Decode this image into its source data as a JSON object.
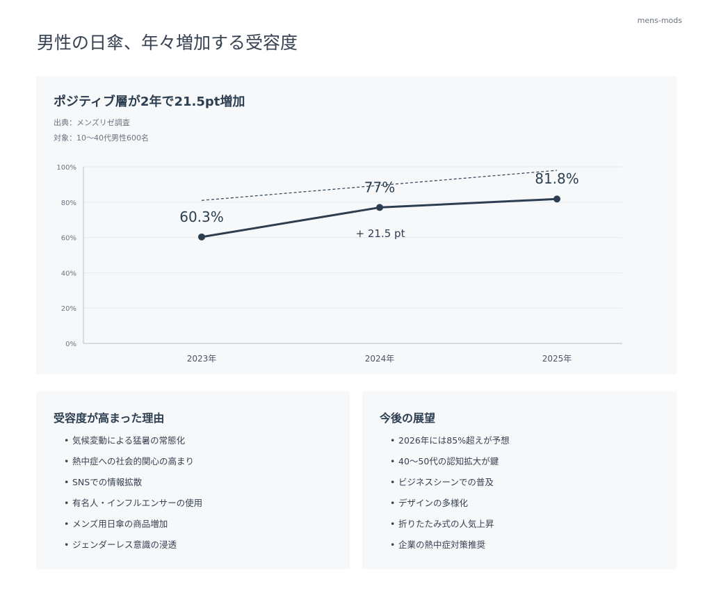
{
  "brand": "mens-mods",
  "page_title": "男性の日傘、年々増加する受容度",
  "chart_panel": {
    "title": "ポジティブ層が2年で21.5pt増加",
    "source": "出典：メンズリゼ調査",
    "target": "対象：10〜40代男性600名",
    "annotation": "+ 21.5 pt"
  },
  "chart_data": {
    "type": "line",
    "categories": [
      "2023年",
      "2024年",
      "2025年"
    ],
    "values": [
      60.3,
      77,
      81.8
    ],
    "data_labels": [
      "60.3%",
      "77%",
      "81.8%"
    ],
    "trendline": {
      "style": "dashed",
      "start": 81,
      "end": 98
    },
    "ylim": [
      0,
      100
    ],
    "yticks": [
      0,
      20,
      40,
      60,
      80,
      100
    ],
    "ytick_labels": [
      "0%",
      "20%",
      "40%",
      "60%",
      "80%",
      "100%"
    ],
    "title": "",
    "xlabel": "",
    "ylabel": "",
    "grid": true,
    "colors": {
      "line": "#2c3e50",
      "grid": "#e6e9ee",
      "axis": "#b8bec8",
      "trend": "#2c3e50"
    }
  },
  "reasons": {
    "title": "受容度が高まった理由",
    "items": [
      "気候変動による猛暑の常態化",
      "熱中症への社会的関心の高まり",
      "SNSでの情報拡散",
      "有名人・インフルエンサーの使用",
      "メンズ用日傘の商品増加",
      "ジェンダーレス意識の浸透"
    ]
  },
  "outlook": {
    "title": "今後の展望",
    "items": [
      "2026年には85%超えが予想",
      "40〜50代の認知拡大が鍵",
      "ビジネスシーンでの普及",
      "デザインの多様化",
      "折りたたみ式の人気上昇",
      "企業の熱中症対策推奨"
    ]
  }
}
